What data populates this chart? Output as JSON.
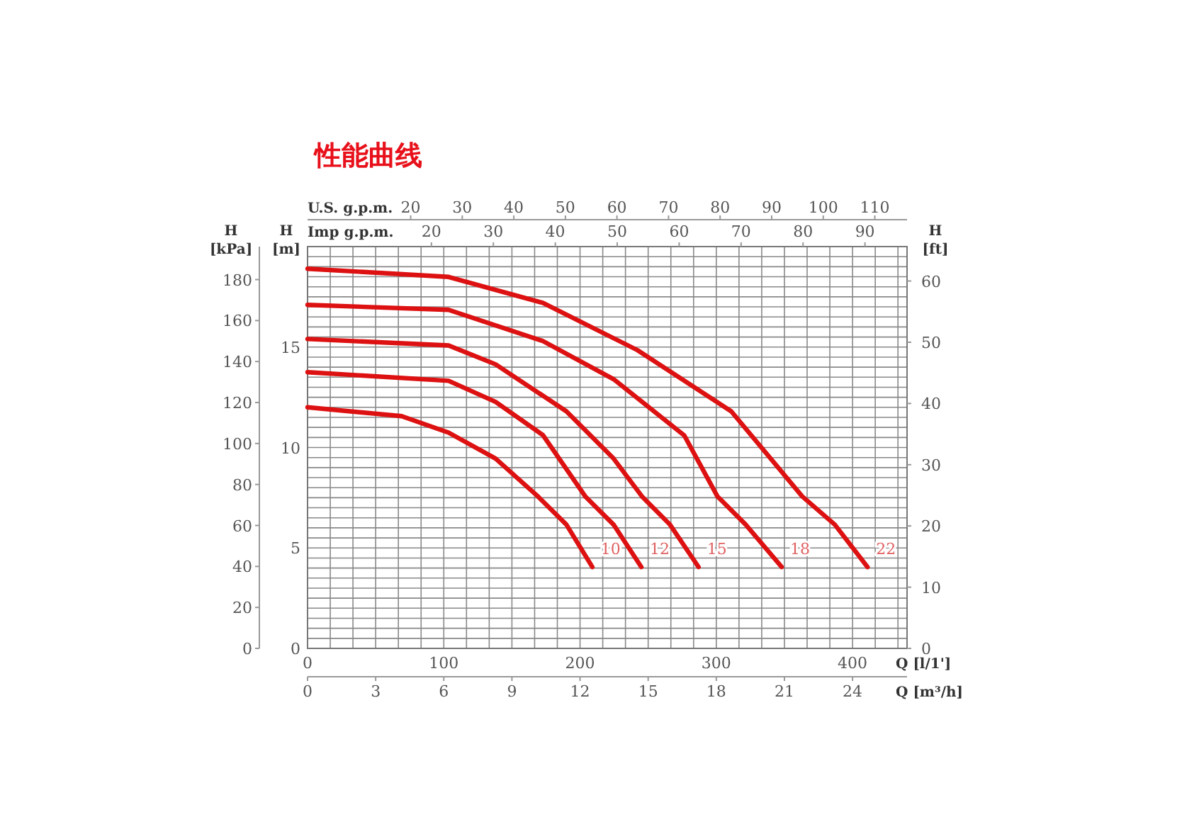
{
  "chart_data": [
    {
      "type": "line",
      "title": "性能曲线",
      "xlabel": "Q [l/1']",
      "xlim": [
        0,
        440
      ],
      "xticks": [
        0,
        100,
        200,
        300,
        400
      ],
      "x2label": "U.S. g.p.m.",
      "x2lim": [
        0,
        116.25
      ],
      "x2ticks": [
        20,
        30,
        40,
        50,
        60,
        70,
        80,
        90,
        100,
        110
      ],
      "ylabel": "H [m]",
      "ylim": [
        0,
        20
      ],
      "yticks": [
        0,
        5,
        10,
        15
      ],
      "y2label": "H [kPa]",
      "y2lim": [
        0,
        196.1
      ],
      "y2ticks": [
        0,
        20,
        40,
        60,
        80,
        100,
        120,
        140,
        160,
        180
      ],
      "y3label": "H [ft]",
      "y3lim": [
        0,
        65.62
      ],
      "y3ticks": [
        0,
        10,
        20,
        30,
        40,
        50,
        60
      ],
      "grid": true,
      "marker": "none",
      "line_style": "solid",
      "series": [
        {
          "name": "10",
          "color": "#dd1111",
          "x": [
            0,
            69,
            103.5,
            138,
            169,
            190,
            209
          ],
          "values": [
            12.0,
            11.56,
            10.74,
            9.45,
            7.57,
            6.16,
            4.05
          ]
        },
        {
          "name": "12",
          "color": "#dd1111",
          "x": [
            0,
            103.5,
            138,
            172.7,
            203.8,
            224.6,
            245
          ],
          "values": [
            13.75,
            13.32,
            12.27,
            10.62,
            7.57,
            6.16,
            4.05
          ]
        },
        {
          "name": "15",
          "color": "#dd1111",
          "x": [
            0,
            103.5,
            138,
            190,
            224.6,
            245.4,
            266,
            287
          ],
          "values": [
            15.4,
            15.08,
            14.14,
            11.8,
            9.45,
            7.57,
            6.16,
            4.05
          ]
        },
        {
          "name": "18",
          "color": "#dd1111",
          "x": [
            0,
            103.5,
            172.7,
            224.6,
            276.5,
            300.8,
            321.6,
            348
          ],
          "values": [
            17.1,
            16.85,
            15.3,
            13.4,
            10.6,
            7.57,
            6.16,
            4.05
          ]
        },
        {
          "name": "22",
          "color": "#dd1111",
          "x": [
            0,
            103.5,
            172.7,
            242,
            311,
            363,
            387,
            411
          ],
          "values": [
            18.9,
            18.49,
            17.2,
            14.85,
            11.8,
            7.57,
            6.16,
            4.05
          ]
        }
      ]
    },
    {
      "type": "line",
      "xlabel": "Q [m³/h]",
      "xlim": [
        0,
        26.4
      ],
      "xticks": [
        0,
        3,
        6,
        9,
        12,
        15,
        18,
        21,
        24
      ],
      "ylim": [
        0,
        20
      ],
      "tick_labels": "x"
    },
    {
      "type": "line",
      "xlabel": "Imp g.p.m.",
      "xlim": [
        0,
        96.79
      ],
      "xticks": [
        20,
        30,
        40,
        50,
        60,
        70,
        80,
        90
      ],
      "ylim": [
        0,
        20
      ],
      "tick_labels": "x"
    }
  ]
}
